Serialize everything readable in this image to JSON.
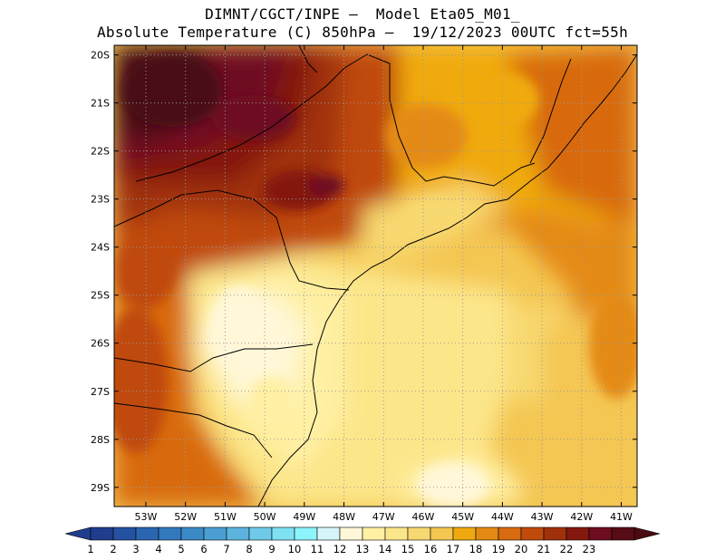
{
  "header": {
    "line1": "DIMNT/CGCT/INPE —  Model Eta05_M01_",
    "line2": "Absolute Temperature (C) 850hPa —  19/12/2023 00UTC fct=55h"
  },
  "map": {
    "lat_labels": [
      "20S",
      "21S",
      "22S",
      "23S",
      "24S",
      "25S",
      "26S",
      "27S",
      "28S",
      "29S"
    ],
    "lat_values": [
      -20,
      -21,
      -22,
      -23,
      -24,
      -25,
      -26,
      -27,
      -28,
      -29
    ],
    "lon_labels": [
      "53W",
      "52W",
      "51W",
      "50W",
      "49W",
      "48W",
      "47W",
      "46W",
      "45W",
      "44W",
      "43W",
      "42W",
      "41W"
    ],
    "lon_values": [
      -53,
      -52,
      -51,
      -50,
      -49,
      -48,
      -47,
      -46,
      -45,
      -44,
      -43,
      -42,
      -41
    ],
    "lat_range": [
      -29.4,
      -19.8
    ],
    "lon_range": [
      -53.8,
      -40.6
    ]
  },
  "colorbar": {
    "labels": [
      "1",
      "2",
      "3",
      "4",
      "5",
      "6",
      "7",
      "8",
      "9",
      "10",
      "11",
      "12",
      "13",
      "14",
      "15",
      "16",
      "17",
      "18",
      "19",
      "20",
      "21",
      "22",
      "23"
    ],
    "colors": [
      "#1f3d8c",
      "#2451a0",
      "#2a66b0",
      "#3278bd",
      "#3a8ac6",
      "#4a9ed2",
      "#5cb4de",
      "#6fcaea",
      "#7fe0f2",
      "#8cf4fb",
      "#d6f5fa",
      "#fff7d8",
      "#fff0a4",
      "#fce68a",
      "#f8d870",
      "#f4c652",
      "#f0aa10",
      "#e48a12",
      "#d86a10",
      "#c04a0c",
      "#a0300c",
      "#84180e",
      "#6e0c20",
      "#560c14"
    ],
    "low_color": "#1f3d8c",
    "high_color": "#4a0c12"
  }
}
